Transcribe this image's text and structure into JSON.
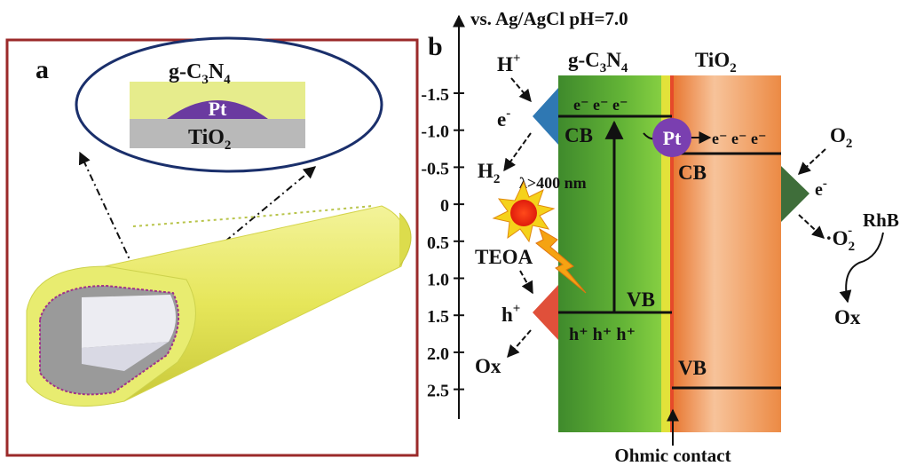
{
  "panel_a": {
    "label": "a",
    "layer_top": "g-C",
    "layer_top_sub1": "3",
    "layer_top_mid": "N",
    "layer_top_sub2": "4",
    "metal": "Pt",
    "layer_bottom": "TiO",
    "layer_bottom_sub": "2",
    "colors": {
      "frame": "#9b2a2a",
      "ellipse": "#1a2f6b",
      "gcn_layer": "#e6ec8c",
      "pt": "#6a3aa0",
      "tio2_layer": "#b9b9b9",
      "tube": "#e3e35a"
    }
  },
  "panel_b": {
    "label": "b",
    "axis_title": "vs.  Ag/AgCl pH=7.0",
    "gcn_label": "g-C",
    "gcn_sub1": "3",
    "gcn_mid": "N",
    "gcn_sub2": "4",
    "tio2_label": "TiO",
    "tio2_sub": "2",
    "ticks": [
      "-1.5",
      "-1.0",
      "-0.5",
      "0",
      "0.5",
      "1.0",
      "1.5",
      "2.0",
      "2.5"
    ],
    "h_plus_in": "H",
    "h_plus_in_sup": "+",
    "e_left": "e",
    "e_left_sup": "-",
    "h2": "H",
    "h2_sub": "2",
    "light": "λ>400 nm",
    "teoa": "TEOA",
    "h_left": "h",
    "h_left_sup": "+",
    "ox_left": "Ox",
    "cb_electrons": "e⁻ e⁻ e⁻",
    "cb_left": "CB",
    "vb_left": "VB",
    "vb_holes": "h⁺ h⁺ h⁺",
    "pt": "Pt",
    "pt_electrons": "e⁻ e⁻ e⁻",
    "cb_right": "CB",
    "vb_right": "VB",
    "o2": "O",
    "o2_sub": "2",
    "e_right": "e",
    "e_right_sup": "-",
    "superoxide": "·O",
    "superoxide_sub": "2",
    "superoxide_sup": "-",
    "rhb": "RhB",
    "ox_right": "Ox",
    "ohmic": "Ohmic contact",
    "colors": {
      "gcn_dark": "#3f8a2c",
      "gcn_light": "#7ccf3a",
      "tio2_dark": "#e8762b",
      "tio2_light": "#f6b27a",
      "interface": "#e2e23a",
      "left_arrow_blue": "#2f78b3",
      "left_arrow_red": "#e0503a",
      "right_arrow": "#3f6e3a",
      "pt": "#7a3fb0"
    }
  }
}
